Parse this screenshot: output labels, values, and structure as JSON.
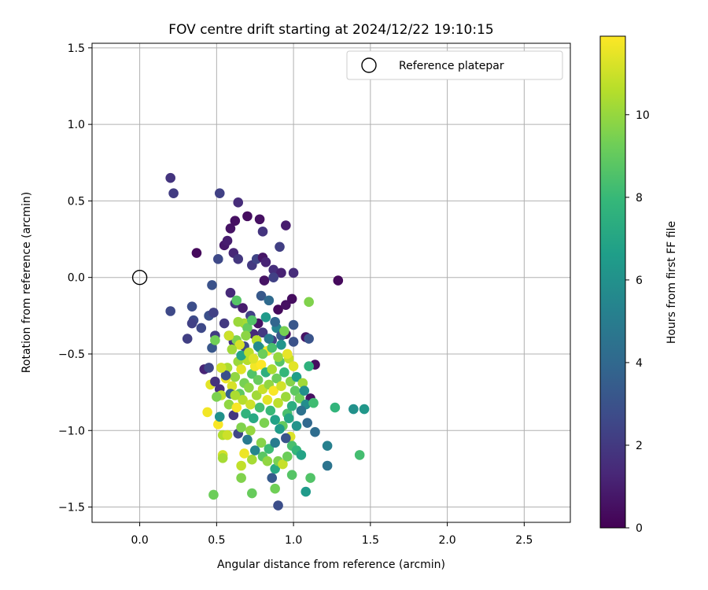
{
  "chart_data": {
    "type": "scatter",
    "title": "FOV centre drift starting at 2024/12/22 19:10:15",
    "xlabel": "Angular distance from reference (arcmin)",
    "ylabel": "Rotation from reference (arcmin)",
    "xlim": [
      -0.31,
      2.8
    ],
    "ylim": [
      -1.6,
      1.53
    ],
    "xticks": [
      0.0,
      0.5,
      1.0,
      1.5,
      2.0,
      2.5
    ],
    "xtick_labels": [
      "0.0",
      "0.5",
      "1.0",
      "1.5",
      "2.0",
      "2.5"
    ],
    "yticks": [
      -1.5,
      -1.0,
      -0.5,
      0.0,
      0.5,
      1.0,
      1.5
    ],
    "ytick_labels": [
      "−1.5",
      "−1.0",
      "−0.5",
      "0.0",
      "0.5",
      "1.0",
      "1.5"
    ],
    "grid": true,
    "legend": {
      "placement": "upper-right",
      "entries": [
        "Reference platepar"
      ]
    },
    "reference_marker": {
      "x": 0.0,
      "y": 0.0,
      "label": "Reference platepar",
      "style": "hollow-circle"
    },
    "colorbar": {
      "label": "Hours from first FF file",
      "colormap": "viridis",
      "range": [
        0,
        11.9
      ],
      "ticks": [
        0,
        2,
        4,
        6,
        8,
        10
      ],
      "tick_labels": [
        "0",
        "2",
        "4",
        "6",
        "8",
        "10"
      ]
    },
    "series": [
      {
        "columns": [
          "x",
          "y",
          "hours"
        ],
        "points": [
          [
            0.2,
            0.65,
            1.8
          ],
          [
            0.22,
            0.55,
            2.1
          ],
          [
            0.52,
            0.55,
            2.3
          ],
          [
            0.64,
            0.49,
            1.5
          ],
          [
            0.37,
            0.16,
            0.3
          ],
          [
            0.55,
            0.21,
            0.8
          ],
          [
            0.57,
            0.24,
            1.0
          ],
          [
            0.59,
            0.32,
            0.6
          ],
          [
            0.62,
            0.37,
            0.5
          ],
          [
            0.7,
            0.4,
            0.4
          ],
          [
            0.78,
            0.38,
            0.5
          ],
          [
            0.8,
            0.3,
            1.8
          ],
          [
            0.95,
            0.34,
            0.9
          ],
          [
            0.51,
            0.12,
            2.6
          ],
          [
            0.61,
            0.16,
            1.3
          ],
          [
            0.64,
            0.12,
            1.9
          ],
          [
            0.73,
            0.08,
            2.0
          ],
          [
            0.76,
            0.12,
            2.4
          ],
          [
            0.8,
            0.13,
            0.7
          ],
          [
            0.82,
            0.1,
            1.2
          ],
          [
            0.87,
            0.05,
            1.6
          ],
          [
            0.91,
            0.2,
            2.2
          ],
          [
            0.92,
            0.03,
            1.1
          ],
          [
            0.81,
            -0.02,
            0.6
          ],
          [
            0.87,
            0.0,
            2.3
          ],
          [
            1.0,
            0.03,
            1.5
          ],
          [
            1.29,
            -0.02,
            0.3
          ],
          [
            0.2,
            -0.22,
            2.6
          ],
          [
            0.34,
            -0.19,
            2.8
          ],
          [
            0.35,
            -0.28,
            2.7
          ],
          [
            0.34,
            -0.3,
            2.3
          ],
          [
            0.31,
            -0.4,
            2.2
          ],
          [
            0.4,
            -0.33,
            2.6
          ],
          [
            0.45,
            -0.25,
            2.9
          ],
          [
            0.48,
            -0.23,
            2.3
          ],
          [
            0.47,
            -0.05,
            3.0
          ],
          [
            0.59,
            -0.1,
            1.4
          ],
          [
            0.62,
            -0.17,
            1.9
          ],
          [
            0.67,
            -0.2,
            0.9
          ],
          [
            0.72,
            -0.25,
            2.3
          ],
          [
            0.77,
            -0.3,
            0.6
          ],
          [
            0.8,
            -0.36,
            2.0
          ],
          [
            0.86,
            -0.41,
            2.3
          ],
          [
            0.9,
            -0.21,
            0.3
          ],
          [
            0.95,
            -0.18,
            0.5
          ],
          [
            0.99,
            -0.14,
            0.4
          ],
          [
            0.95,
            -0.37,
            0.4
          ],
          [
            1.0,
            -0.31,
            3.2
          ],
          [
            1.0,
            -0.42,
            3.0
          ],
          [
            1.08,
            -0.39,
            0.6
          ],
          [
            1.1,
            -0.4,
            3.1
          ],
          [
            1.14,
            -0.57,
            0.4
          ],
          [
            0.42,
            -0.6,
            1.2
          ],
          [
            0.45,
            -0.59,
            2.5
          ],
          [
            0.47,
            -0.46,
            3.2
          ],
          [
            0.49,
            -0.38,
            2.1
          ],
          [
            0.52,
            -0.73,
            1.6
          ],
          [
            0.55,
            -0.3,
            2.0
          ],
          [
            0.58,
            -0.38,
            3.3
          ],
          [
            0.61,
            -0.42,
            1.8
          ],
          [
            0.68,
            -0.45,
            2.6
          ],
          [
            0.74,
            -0.37,
            1.4
          ],
          [
            0.79,
            -0.12,
            3.3
          ],
          [
            0.84,
            -0.15,
            4.1
          ],
          [
            0.89,
            -0.33,
            5.4
          ],
          [
            0.92,
            -0.38,
            3.3
          ],
          [
            1.11,
            -0.79,
            0.5
          ],
          [
            1.09,
            -0.95,
            4.0
          ],
          [
            1.14,
            -1.01,
            4.2
          ],
          [
            1.22,
            -1.1,
            5.2
          ],
          [
            1.22,
            -1.23,
            4.6
          ],
          [
            1.27,
            -0.85,
            7.8
          ],
          [
            1.39,
            -0.86,
            6.0
          ],
          [
            1.46,
            -0.86,
            6.3
          ],
          [
            1.43,
            -1.16,
            8.3
          ],
          [
            1.11,
            -1.31,
            8.6
          ],
          [
            1.08,
            -1.4,
            6.4
          ],
          [
            0.99,
            -1.29,
            8.7
          ],
          [
            0.9,
            -1.49,
            2.8
          ],
          [
            0.86,
            -1.31,
            3.4
          ],
          [
            0.88,
            -1.38,
            9.3
          ],
          [
            0.73,
            -1.41,
            9.1
          ],
          [
            0.48,
            -1.42,
            9.2
          ],
          [
            0.66,
            -1.31,
            9.6
          ],
          [
            0.66,
            -1.23,
            10.8
          ],
          [
            0.54,
            -1.16,
            11.1
          ],
          [
            0.54,
            -1.18,
            10.3
          ],
          [
            0.68,
            -1.15,
            11.6
          ],
          [
            0.73,
            -1.19,
            10.3
          ],
          [
            0.51,
            -0.96,
            11.8
          ],
          [
            0.54,
            -1.03,
            10.5
          ],
          [
            0.57,
            -1.03,
            11.0
          ],
          [
            0.64,
            -1.02,
            2.5
          ],
          [
            0.66,
            -0.98,
            9.6
          ],
          [
            0.72,
            -1.0,
            10.0
          ],
          [
            0.79,
            -1.08,
            9.7
          ],
          [
            0.8,
            -1.17,
            8.8
          ],
          [
            0.84,
            -1.12,
            8.1
          ],
          [
            0.88,
            -1.25,
            7.2
          ],
          [
            0.9,
            -1.2,
            9.5
          ],
          [
            0.93,
            -1.22,
            10.9
          ],
          [
            0.96,
            -1.17,
            9.2
          ],
          [
            0.98,
            -1.04,
            11.3
          ],
          [
            0.99,
            -1.1,
            8.4
          ],
          [
            1.02,
            -1.13,
            7.9
          ],
          [
            1.05,
            -1.16,
            6.9
          ],
          [
            0.52,
            -0.91,
            6.0
          ],
          [
            0.53,
            -0.77,
            10.7
          ],
          [
            0.56,
            -0.66,
            11.6
          ],
          [
            0.57,
            -0.59,
            10.4
          ],
          [
            0.58,
            -0.83,
            9.9
          ],
          [
            0.6,
            -0.71,
            11.2
          ],
          [
            0.61,
            -0.9,
            1.9
          ],
          [
            0.62,
            -0.65,
            9.9
          ],
          [
            0.63,
            -0.85,
            11.8
          ],
          [
            0.64,
            -0.55,
            10.1
          ],
          [
            0.65,
            -0.76,
            8.9
          ],
          [
            0.66,
            -0.6,
            11.4
          ],
          [
            0.67,
            -0.8,
            10.6
          ],
          [
            0.68,
            -0.69,
            9.4
          ],
          [
            0.69,
            -0.89,
            7.7
          ],
          [
            0.7,
            -0.54,
            10.6
          ],
          [
            0.71,
            -0.72,
            9.8
          ],
          [
            0.72,
            -0.83,
            11.0
          ],
          [
            0.73,
            -0.63,
            8.6
          ],
          [
            0.74,
            -0.92,
            7.2
          ],
          [
            0.75,
            -0.58,
            11.7
          ],
          [
            0.76,
            -0.77,
            10.2
          ],
          [
            0.77,
            -0.67,
            9.1
          ],
          [
            0.78,
            -0.85,
            8.3
          ],
          [
            0.79,
            -0.57,
            11.9
          ],
          [
            0.8,
            -0.73,
            10.9
          ],
          [
            0.81,
            -0.95,
            9.5
          ],
          [
            0.82,
            -0.62,
            7.5
          ],
          [
            0.83,
            -0.8,
            11.4
          ],
          [
            0.84,
            -0.7,
            9.9
          ],
          [
            0.85,
            -0.87,
            8.0
          ],
          [
            0.86,
            -0.6,
            10.4
          ],
          [
            0.87,
            -0.74,
            11.8
          ],
          [
            0.88,
            -0.93,
            6.8
          ],
          [
            0.89,
            -0.66,
            9.2
          ],
          [
            0.9,
            -0.82,
            10.7
          ],
          [
            0.91,
            -0.55,
            8.7
          ],
          [
            0.92,
            -0.71,
            11.1
          ],
          [
            0.93,
            -0.97,
            9.0
          ],
          [
            0.94,
            -0.62,
            7.9
          ],
          [
            0.95,
            -0.78,
            10.1
          ],
          [
            0.96,
            -0.89,
            8.4
          ],
          [
            0.97,
            -0.53,
            10.9
          ],
          [
            0.98,
            -0.68,
            9.7
          ],
          [
            0.99,
            -0.84,
            7.4
          ],
          [
            1.0,
            -0.58,
            11.4
          ],
          [
            1.01,
            -0.74,
            8.9
          ],
          [
            1.02,
            -0.65,
            6.6
          ],
          [
            1.04,
            -0.79,
            9.3
          ],
          [
            1.06,
            -0.69,
            10.2
          ],
          [
            1.08,
            -0.83,
            5.8
          ],
          [
            1.1,
            -0.58,
            7.6
          ],
          [
            1.13,
            -0.82,
            8.2
          ],
          [
            1.1,
            -0.16,
            9.6
          ],
          [
            0.46,
            -0.7,
            11.4
          ],
          [
            0.44,
            -0.88,
            11.7
          ],
          [
            0.49,
            -0.68,
            1.7
          ],
          [
            0.56,
            -0.64,
            2.9
          ],
          [
            0.59,
            -0.76,
            3.6
          ],
          [
            0.62,
            -0.77,
            10.4
          ],
          [
            0.63,
            -0.41,
            9.5
          ],
          [
            0.65,
            -0.44,
            11.2
          ],
          [
            0.68,
            -0.3,
            10.3
          ],
          [
            0.7,
            -0.33,
            9.0
          ],
          [
            0.73,
            -0.28,
            8.6
          ],
          [
            0.76,
            -0.41,
            10.6
          ],
          [
            0.78,
            -0.46,
            8.2
          ],
          [
            0.82,
            -0.26,
            6.4
          ],
          [
            0.83,
            -0.48,
            11.7
          ],
          [
            0.63,
            -0.15,
            8.7
          ],
          [
            0.64,
            -0.29,
            10.1
          ],
          [
            0.66,
            -0.51,
            6.9
          ],
          [
            0.69,
            -0.38,
            9.8
          ],
          [
            0.71,
            -0.49,
            10.7
          ],
          [
            0.74,
            -0.53,
            11.3
          ],
          [
            0.77,
            -0.45,
            5.7
          ],
          [
            0.8,
            -0.5,
            9.2
          ],
          [
            0.84,
            -0.4,
            4.9
          ],
          [
            0.86,
            -0.46,
            8.4
          ],
          [
            0.88,
            -0.29,
            3.9
          ],
          [
            0.9,
            -0.52,
            10.0
          ],
          [
            0.92,
            -0.44,
            6.2
          ],
          [
            0.94,
            -0.35,
            9.4
          ],
          [
            0.96,
            -0.5,
            11.5
          ],
          [
            0.58,
            -0.38,
            11.0
          ],
          [
            0.6,
            -0.47,
            10.2
          ],
          [
            0.5,
            -0.78,
            9.5
          ],
          [
            0.49,
            -0.41,
            9.3
          ],
          [
            0.53,
            -0.59,
            11.1
          ],
          [
            0.7,
            -1.06,
            4.9
          ],
          [
            0.75,
            -1.13,
            5.5
          ],
          [
            0.83,
            -1.2,
            9.9
          ],
          [
            0.88,
            -1.08,
            5.0
          ],
          [
            0.91,
            -0.99,
            6.5
          ],
          [
            0.95,
            -1.05,
            3.1
          ],
          [
            1.02,
            -0.97,
            6.1
          ],
          [
            1.05,
            -0.87,
            4.5
          ],
          [
            1.07,
            -0.74,
            5.9
          ],
          [
            0.97,
            -0.92,
            7.0
          ]
        ]
      }
    ]
  }
}
